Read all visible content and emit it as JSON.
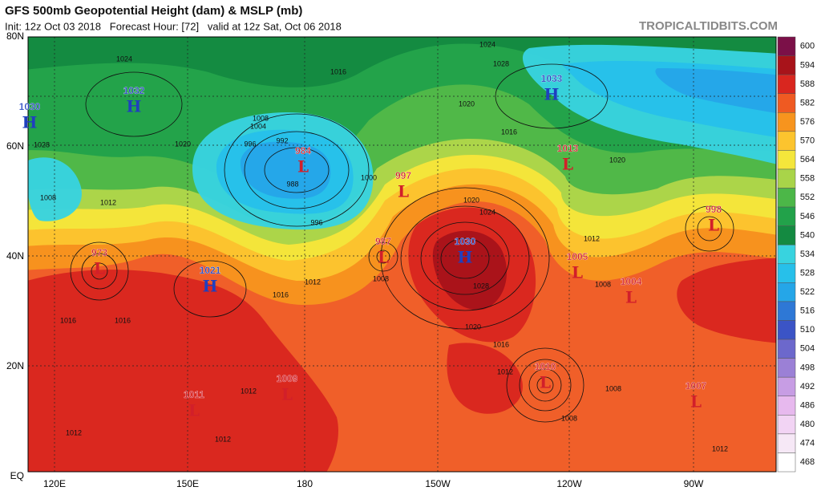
{
  "header": {
    "title": "GFS 500mb Geopotential Height (dam) & MSLP (mb)",
    "subtitle": "Init: 12z Oct 03 2018   Forecast Hour: [72]   valid at 12z Sat, Oct 06 2018",
    "site": "TROPICALTIDBITS.COM"
  },
  "axes": {
    "lat": [
      "80N",
      "60N",
      "40N",
      "20N",
      "EQ"
    ],
    "lon": [
      "120E",
      "150E",
      "180",
      "150W",
      "120W",
      "90W"
    ]
  },
  "colorbar": [
    {
      "level": 600,
      "color": "#7b1048"
    },
    {
      "level": 594,
      "color": "#a8131a"
    },
    {
      "level": 588,
      "color": "#d9261f"
    },
    {
      "level": 582,
      "color": "#ef5a22"
    },
    {
      "level": 576,
      "color": "#f7941e"
    },
    {
      "level": 570,
      "color": "#fcc42e"
    },
    {
      "level": 564,
      "color": "#f4e63b"
    },
    {
      "level": 558,
      "color": "#a9d449"
    },
    {
      "level": 552,
      "color": "#4cb748"
    },
    {
      "level": 546,
      "color": "#22a24a"
    },
    {
      "level": 540,
      "color": "#148a41"
    },
    {
      "level": 534,
      "color": "#38d3df"
    },
    {
      "level": 528,
      "color": "#27c0ea"
    },
    {
      "level": 522,
      "color": "#25a6e8"
    },
    {
      "level": 516,
      "color": "#2e78d6"
    },
    {
      "level": 510,
      "color": "#3b54c6"
    },
    {
      "level": 504,
      "color": "#6c68cc"
    },
    {
      "level": 498,
      "color": "#9b80d6"
    },
    {
      "level": 492,
      "color": "#c79de4"
    },
    {
      "level": 486,
      "color": "#e7b9ee"
    },
    {
      "level": 480,
      "color": "#f2d4f4"
    },
    {
      "level": 474,
      "color": "#f6e8f6"
    },
    {
      "level": 468,
      "color": "#ffffff"
    }
  ],
  "centers": [
    {
      "type": "H",
      "value": 1030
    },
    {
      "type": "H",
      "value": 1032
    },
    {
      "type": "H",
      "value": 1033
    },
    {
      "type": "L",
      "value": 984
    },
    {
      "type": "L",
      "value": 1013
    },
    {
      "type": "L",
      "value": 997
    },
    {
      "type": "L",
      "value": 987
    },
    {
      "type": "H",
      "value": 1030
    },
    {
      "type": "L",
      "value": 973
    },
    {
      "type": "H",
      "value": 1021
    },
    {
      "type": "L",
      "value": 1005
    },
    {
      "type": "L",
      "value": 1004
    },
    {
      "type": "L",
      "value": 998
    },
    {
      "type": "L",
      "value": 1009
    },
    {
      "type": "L",
      "value": 1011
    },
    {
      "type": "L",
      "value": 1010
    },
    {
      "type": "L",
      "value": 1007
    }
  ],
  "isobar_labels": [
    1024,
    1016,
    1024,
    1028,
    1008,
    1004,
    996,
    992,
    988,
    996,
    1000,
    1012,
    1016,
    1016,
    1020,
    1028,
    1024,
    1020,
    1016,
    1012,
    1008,
    1008,
    1012,
    1012,
    1012,
    1012,
    1016,
    1020,
    1016,
    1020,
    1012,
    1008,
    1008,
    1028,
    1008,
    1012,
    1020
  ]
}
